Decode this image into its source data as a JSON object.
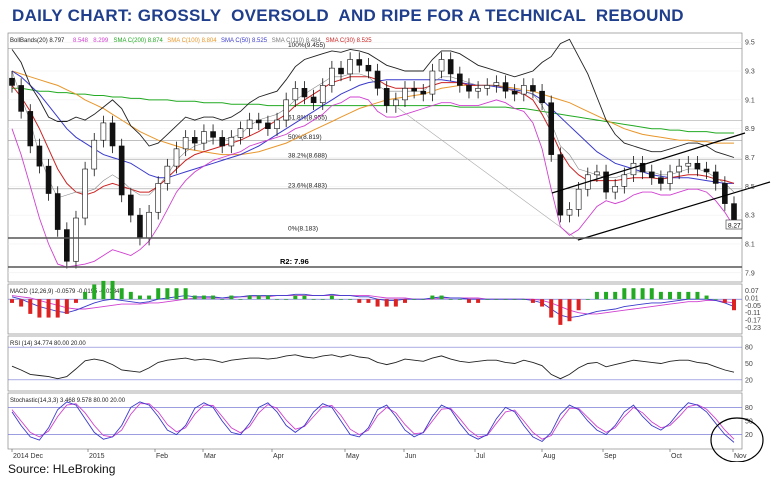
{
  "title": "DAILY CHART: GROSSLY  OVERSOLD  AND RIPE FOR A TECHNICAL  REBOUND",
  "source": "Source:  HLeBroking",
  "chart_data": {
    "type": "line",
    "price_panel": {
      "legend": [
        "BollBands(20) 8.797",
        "8.548",
        "8.299",
        "SMA C(200) 8.874",
        "SMA C(100) 8.804",
        "SMA C(50) 8.525",
        "SMA C(110) 8.484",
        "SMA C(30) 8.525"
      ],
      "legend_colors": [
        "#222222",
        "#d040d0",
        "#d040d0",
        "#22aa22",
        "#e8962a",
        "#3a3acc",
        "#777777",
        "#cc2222"
      ],
      "ylim": [
        7.85,
        9.55
      ],
      "y_ticks": [
        7.9,
        8.1,
        8.3,
        8.5,
        8.7,
        8.9,
        9.1,
        9.3,
        9.5
      ],
      "last_price_label": "8.27",
      "last_price": 8.27,
      "fib_levels": [
        {
          "label": "100%(9.455)",
          "value": 9.455
        },
        {
          "label": "61.8%(8.955)",
          "value": 8.955
        },
        {
          "label": "50%(8.819)",
          "value": 8.819
        },
        {
          "label": "38.2%(8.688)",
          "value": 8.688
        },
        {
          "label": "23.6%(8.483)",
          "value": 8.483
        },
        {
          "label": "0%(8.183)",
          "value": 8.183
        }
      ],
      "support_label": "R2: 7.96",
      "support_value": 7.96,
      "close": [
        9.2,
        9.02,
        8.78,
        8.64,
        8.45,
        8.2,
        7.98,
        8.28,
        8.62,
        8.82,
        8.94,
        8.78,
        8.44,
        8.3,
        8.14,
        8.32,
        8.52,
        8.64,
        8.76,
        8.84,
        8.8,
        8.88,
        8.84,
        8.78,
        8.84,
        8.9,
        8.96,
        8.94,
        8.9,
        8.96,
        9.1,
        9.18,
        9.12,
        9.08,
        9.2,
        9.32,
        9.28,
        9.38,
        9.34,
        9.3,
        9.18,
        9.06,
        9.1,
        9.18,
        9.16,
        9.14,
        9.3,
        9.38,
        9.28,
        9.2,
        9.16,
        9.18,
        9.2,
        9.22,
        9.16,
        9.14,
        9.2,
        9.16,
        9.08,
        8.72,
        8.3,
        8.34,
        8.48,
        8.58,
        8.6,
        8.46,
        8.5,
        8.58,
        8.66,
        8.6,
        8.56,
        8.52,
        8.6,
        8.64,
        8.66,
        8.62,
        8.6,
        8.52,
        8.38,
        8.26
      ],
      "bb_upper": [
        9.45,
        9.36,
        9.2,
        9.1,
        8.98,
        8.95,
        8.95,
        8.98,
        8.96,
        9.0,
        9.05,
        9.1,
        9.04,
        8.92,
        8.86,
        8.78,
        8.8,
        8.86,
        8.92,
        8.98,
        8.96,
        8.98,
        8.98,
        8.96,
        8.98,
        9.02,
        9.08,
        9.12,
        9.14,
        9.16,
        9.24,
        9.33,
        9.38,
        9.4,
        9.42,
        9.44,
        9.43,
        9.45,
        9.44,
        9.42,
        9.38,
        9.34,
        9.32,
        9.3,
        9.3,
        9.3,
        9.38,
        9.44,
        9.44,
        9.42,
        9.38,
        9.34,
        9.32,
        9.3,
        9.28,
        9.26,
        9.28,
        9.3,
        9.36,
        9.4,
        9.49,
        9.52,
        9.4,
        9.28,
        9.12,
        8.96,
        8.86,
        8.8,
        8.78,
        8.76,
        8.74,
        8.74,
        8.76,
        8.78,
        8.8,
        8.8,
        8.78,
        8.74,
        8.72,
        8.7
      ],
      "bb_lower": [
        8.9,
        8.72,
        8.5,
        8.28,
        8.1,
        7.96,
        7.94,
        7.95,
        7.96,
        7.98,
        8.02,
        8.06,
        8.04,
        8.02,
        8.06,
        8.12,
        8.22,
        8.34,
        8.46,
        8.54,
        8.6,
        8.64,
        8.68,
        8.7,
        8.72,
        8.74,
        8.78,
        8.8,
        8.82,
        8.84,
        8.86,
        8.9,
        8.92,
        8.96,
        9.0,
        9.06,
        9.08,
        9.12,
        9.12,
        9.1,
        9.02,
        8.98,
        8.98,
        9.0,
        9.02,
        9.04,
        9.06,
        9.08,
        9.08,
        9.06,
        9.06,
        9.06,
        9.08,
        9.1,
        9.08,
        9.04,
        9.02,
        8.94,
        8.76,
        8.48,
        8.22,
        8.16,
        8.2,
        8.28,
        8.36,
        8.4,
        8.38,
        8.4,
        8.44,
        8.46,
        8.46,
        8.44,
        8.44,
        8.46,
        8.48,
        8.48,
        8.46,
        8.4,
        8.32,
        8.22
      ],
      "bb_mid": [
        9.3,
        9.12,
        8.95,
        8.72,
        8.55,
        8.42,
        8.44,
        8.46,
        8.46,
        8.48,
        8.54,
        8.58,
        8.54,
        8.48,
        8.44,
        8.44,
        8.5,
        8.58,
        8.68,
        8.74,
        8.78,
        8.8,
        8.82,
        8.82,
        8.84,
        8.86,
        8.92,
        8.96,
        8.98,
        9.0,
        9.04,
        9.1,
        9.14,
        9.18,
        9.22,
        9.26,
        9.26,
        9.28,
        9.28,
        9.26,
        9.2,
        9.16,
        9.16,
        9.16,
        9.16,
        9.16,
        9.22,
        9.26,
        9.26,
        9.24,
        9.22,
        9.2,
        9.2,
        9.2,
        9.18,
        9.16,
        9.16,
        9.14,
        9.06,
        8.94,
        8.78,
        8.72,
        8.62,
        8.6,
        8.58,
        8.56,
        8.56,
        8.58,
        8.6,
        8.6,
        8.6,
        8.58,
        8.58,
        8.6,
        8.62,
        8.62,
        8.6,
        8.56,
        8.52,
        8.46
      ],
      "sma200": [
        9.18,
        9.18,
        9.17,
        9.16,
        9.16,
        9.15,
        9.15,
        9.14,
        9.14,
        9.13,
        9.13,
        9.12,
        9.12,
        9.11,
        9.11,
        9.1,
        9.1,
        9.1,
        9.09,
        9.09,
        9.09,
        9.08,
        9.08,
        9.08,
        9.07,
        9.07,
        9.07,
        9.07,
        9.06,
        9.06,
        9.06,
        9.06,
        9.06,
        9.06,
        9.06,
        9.06,
        9.06,
        9.06,
        9.06,
        9.06,
        9.06,
        9.06,
        9.06,
        9.06,
        9.06,
        9.06,
        9.06,
        9.06,
        9.06,
        9.05,
        9.05,
        9.05,
        9.05,
        9.05,
        9.05,
        9.04,
        9.04,
        9.03,
        9.02,
        9.01,
        9.0,
        8.99,
        8.98,
        8.97,
        8.96,
        8.95,
        8.94,
        8.93,
        8.92,
        8.91,
        8.9,
        8.9,
        8.89,
        8.89,
        8.88,
        8.88,
        8.88,
        8.87,
        8.87,
        8.87
      ],
      "sma100": [
        9.3,
        9.28,
        9.26,
        9.24,
        9.22,
        9.2,
        9.17,
        9.14,
        9.1,
        9.07,
        9.04,
        9.0,
        8.96,
        8.92,
        8.88,
        8.85,
        8.82,
        8.8,
        8.78,
        8.76,
        8.75,
        8.74,
        8.73,
        8.72,
        8.72,
        8.72,
        8.73,
        8.74,
        8.76,
        8.78,
        8.8,
        8.83,
        8.86,
        8.89,
        8.92,
        8.95,
        8.98,
        9.01,
        9.04,
        9.06,
        9.08,
        9.1,
        9.11,
        9.12,
        9.13,
        9.14,
        9.16,
        9.18,
        9.19,
        9.2,
        9.2,
        9.2,
        9.2,
        9.2,
        9.19,
        9.18,
        9.17,
        9.16,
        9.14,
        9.12,
        9.1,
        9.08,
        9.05,
        9.02,
        8.99,
        8.96,
        8.93,
        8.9,
        8.88,
        8.86,
        8.85,
        8.84,
        8.83,
        8.82,
        8.82,
        8.81,
        8.81,
        8.8,
        8.8,
        8.8
      ],
      "sma50": [
        9.3,
        9.26,
        9.2,
        9.14,
        9.06,
        8.98,
        8.9,
        8.84,
        8.8,
        8.76,
        8.72,
        8.7,
        8.68,
        8.66,
        8.62,
        8.58,
        8.56,
        8.56,
        8.58,
        8.6,
        8.62,
        8.64,
        8.66,
        8.68,
        8.7,
        8.72,
        8.75,
        8.78,
        8.82,
        8.86,
        8.9,
        8.94,
        8.98,
        9.02,
        9.06,
        9.1,
        9.14,
        9.17,
        9.2,
        9.22,
        9.23,
        9.24,
        9.24,
        9.24,
        9.24,
        9.24,
        9.24,
        9.24,
        9.23,
        9.22,
        9.21,
        9.2,
        9.2,
        9.19,
        9.18,
        9.17,
        9.16,
        9.14,
        9.1,
        9.04,
        8.98,
        8.92,
        8.86,
        8.8,
        8.74,
        8.7,
        8.66,
        8.64,
        8.62,
        8.6,
        8.58,
        8.57,
        8.56,
        8.56,
        8.56,
        8.55,
        8.54,
        8.53,
        8.52,
        8.52
      ],
      "sma30": [
        9.2,
        9.12,
        9.02,
        8.9,
        8.76,
        8.62,
        8.52,
        8.46,
        8.44,
        8.46,
        8.5,
        8.52,
        8.5,
        8.48,
        8.46,
        8.46,
        8.5,
        8.56,
        8.62,
        8.68,
        8.72,
        8.74,
        8.76,
        8.78,
        8.8,
        8.82,
        8.85,
        8.88,
        8.92,
        8.96,
        9.0,
        9.06,
        9.1,
        9.14,
        9.18,
        9.22,
        9.24,
        9.26,
        9.26,
        9.26,
        9.24,
        9.2,
        9.18,
        9.18,
        9.18,
        9.18,
        9.2,
        9.22,
        9.22,
        9.22,
        9.2,
        9.2,
        9.2,
        9.2,
        9.18,
        9.16,
        9.14,
        9.1,
        9.0,
        8.88,
        8.74,
        8.64,
        8.58,
        8.54,
        8.54,
        8.54,
        8.54,
        8.55,
        8.56,
        8.56,
        8.56,
        8.55,
        8.56,
        8.57,
        8.58,
        8.58,
        8.57,
        8.55,
        8.54,
        8.52
      ]
    },
    "macd_panel": {
      "legend": "MACD (12,26,9)  -0.0579  -0.0195  -0.0384",
      "y_ticks": [
        0.07,
        0.01,
        -0.05,
        -0.11,
        -0.17,
        -0.23
      ],
      "ylim": [
        -0.26,
        0.1
      ],
      "macd": [
        0.02,
        0.0,
        -0.03,
        -0.06,
        -0.08,
        -0.1,
        -0.11,
        -0.09,
        -0.06,
        -0.03,
        -0.01,
        0.0,
        -0.01,
        -0.02,
        -0.03,
        -0.02,
        0.0,
        0.01,
        0.02,
        0.03,
        0.02,
        0.02,
        0.02,
        0.01,
        0.02,
        0.02,
        0.03,
        0.03,
        0.03,
        0.03,
        0.03,
        0.04,
        0.04,
        0.03,
        0.03,
        0.04,
        0.03,
        0.03,
        0.02,
        0.02,
        0.0,
        -0.01,
        -0.01,
        0.0,
        0.0,
        0.0,
        0.01,
        0.02,
        0.01,
        0.01,
        0.0,
        0.0,
        0.0,
        0.0,
        0.0,
        0.0,
        0.0,
        -0.01,
        -0.03,
        -0.08,
        -0.13,
        -0.15,
        -0.14,
        -0.12,
        -0.1,
        -0.09,
        -0.08,
        -0.06,
        -0.05,
        -0.04,
        -0.03,
        -0.03,
        -0.02,
        -0.01,
        0.0,
        0.0,
        0.0,
        -0.01,
        -0.03,
        -0.06
      ],
      "signal": [
        0.03,
        0.02,
        0.01,
        -0.01,
        -0.03,
        -0.05,
        -0.07,
        -0.08,
        -0.08,
        -0.07,
        -0.06,
        -0.05,
        -0.04,
        -0.04,
        -0.04,
        -0.03,
        -0.03,
        -0.02,
        -0.01,
        0.0,
        0.01,
        0.01,
        0.01,
        0.01,
        0.01,
        0.02,
        0.02,
        0.02,
        0.02,
        0.03,
        0.03,
        0.03,
        0.03,
        0.03,
        0.03,
        0.03,
        0.03,
        0.03,
        0.03,
        0.03,
        0.02,
        0.01,
        0.01,
        0.01,
        0.0,
        0.0,
        0.0,
        0.01,
        0.01,
        0.01,
        0.01,
        0.01,
        0.0,
        0.0,
        0.0,
        0.0,
        0.0,
        0.0,
        -0.01,
        -0.03,
        -0.06,
        -0.09,
        -0.11,
        -0.12,
        -0.12,
        -0.11,
        -0.1,
        -0.09,
        -0.08,
        -0.07,
        -0.06,
        -0.05,
        -0.04,
        -0.03,
        -0.02,
        -0.02,
        -0.01,
        -0.01,
        -0.02,
        -0.03
      ]
    },
    "rsi_panel": {
      "legend": "RSI (14)  34.774  80.00  20.00",
      "y_ticks": [
        80,
        50,
        20
      ],
      "ylim": [
        5,
        95
      ],
      "values": [
        45,
        38,
        30,
        28,
        26,
        22,
        26,
        40,
        55,
        58,
        55,
        48,
        38,
        36,
        34,
        42,
        52,
        56,
        58,
        60,
        56,
        58,
        56,
        52,
        56,
        58,
        60,
        60,
        58,
        60,
        64,
        66,
        62,
        60,
        64,
        66,
        62,
        66,
        62,
        60,
        52,
        48,
        52,
        58,
        56,
        54,
        60,
        64,
        58,
        54,
        52,
        54,
        56,
        56,
        52,
        50,
        56,
        52,
        46,
        30,
        22,
        30,
        42,
        50,
        52,
        44,
        48,
        52,
        56,
        54,
        52,
        50,
        54,
        56,
        56,
        52,
        50,
        44,
        38,
        34
      ]
    },
    "stoch_panel": {
      "legend": "Stochastic(14,3,3)  3.468  9.578  80.00  20.00",
      "y_ticks": [
        80,
        50,
        20
      ],
      "ylim": [
        -5,
        105
      ],
      "k": [
        70,
        40,
        15,
        8,
        35,
        75,
        92,
        85,
        55,
        25,
        10,
        15,
        40,
        80,
        92,
        85,
        60,
        30,
        20,
        40,
        78,
        90,
        80,
        50,
        25,
        20,
        45,
        80,
        90,
        70,
        40,
        25,
        40,
        70,
        88,
        80,
        50,
        20,
        15,
        35,
        75,
        85,
        60,
        30,
        15,
        25,
        60,
        85,
        75,
        45,
        20,
        10,
        20,
        55,
        80,
        70,
        40,
        15,
        5,
        25,
        65,
        85,
        75,
        50,
        30,
        20,
        40,
        70,
        85,
        60,
        40,
        30,
        45,
        70,
        90,
        85,
        70,
        45,
        20,
        3
      ],
      "d": [
        75,
        50,
        25,
        15,
        28,
        60,
        85,
        88,
        68,
        40,
        18,
        15,
        30,
        65,
        88,
        88,
        70,
        42,
        26,
        35,
        65,
        85,
        84,
        60,
        35,
        24,
        38,
        68,
        86,
        78,
        52,
        32,
        38,
        60,
        82,
        84,
        62,
        32,
        20,
        30,
        62,
        80,
        68,
        42,
        22,
        24,
        50,
        76,
        78,
        55,
        30,
        15,
        18,
        45,
        70,
        74,
        50,
        25,
        10,
        18,
        52,
        78,
        78,
        58,
        38,
        25,
        35,
        60,
        80,
        68,
        48,
        35,
        40,
        60,
        82,
        86,
        76,
        55,
        30,
        10
      ]
    },
    "x_labels": [
      "2014 Dec",
      "2015",
      "Feb",
      "Mar",
      "Apr",
      "May",
      "Jun",
      "Jul",
      "Aug",
      "Sep",
      "Oct",
      "Nov"
    ]
  }
}
